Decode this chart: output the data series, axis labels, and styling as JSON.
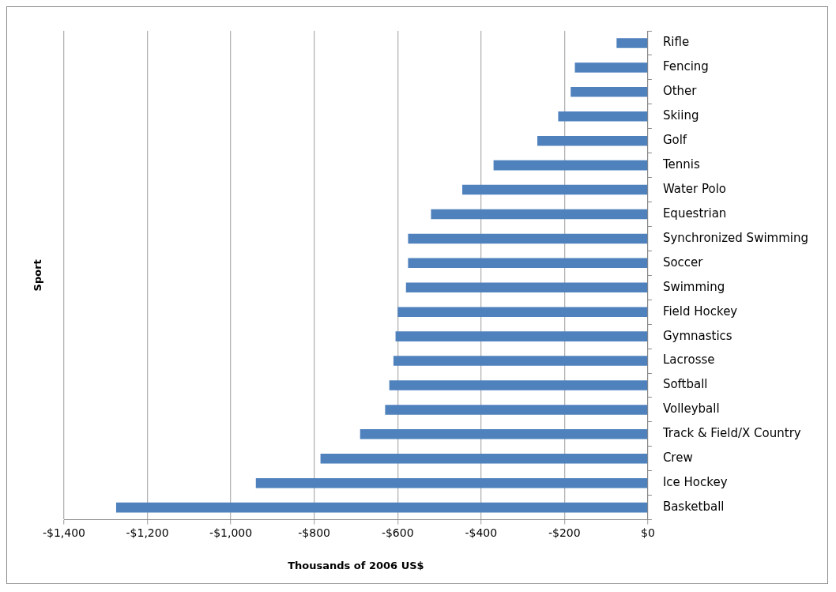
{
  "chart_data": {
    "type": "bar",
    "orientation": "horizontal",
    "xlabel": "Thousands of 2006 US$",
    "ylabel": "Sport",
    "categories": [
      "Rifle",
      "Fencing",
      "Other",
      "Skiing",
      "Golf",
      "Tennis",
      "Water Polo",
      "Equestrian",
      "Synchronized Swimming",
      "Soccer",
      "Swimming",
      "Field Hockey",
      "Gymnastics",
      "Lacrosse",
      "Softball",
      "Volleyball",
      "Track & Field/X Country",
      "Crew",
      "Ice Hockey",
      "Basketball"
    ],
    "values": [
      -75,
      -175,
      -185,
      -215,
      -265,
      -370,
      -445,
      -520,
      -575,
      -575,
      -580,
      -600,
      -605,
      -610,
      -620,
      -630,
      -690,
      -785,
      -940,
      -1275
    ],
    "color": "#4f81bd",
    "xlim": [
      -1400,
      0
    ],
    "xticks": [
      {
        "value": -1400,
        "label": "-$1,400"
      },
      {
        "value": -1200,
        "label": "-$1,200"
      },
      {
        "value": -1000,
        "label": "-$1,000"
      },
      {
        "value": -800,
        "label": "-$800"
      },
      {
        "value": -600,
        "label": "-$600"
      },
      {
        "value": -400,
        "label": "-$400"
      },
      {
        "value": -200,
        "label": "-$200"
      },
      {
        "value": 0,
        "label": "$0"
      }
    ],
    "grid": "x",
    "legend": false
  }
}
